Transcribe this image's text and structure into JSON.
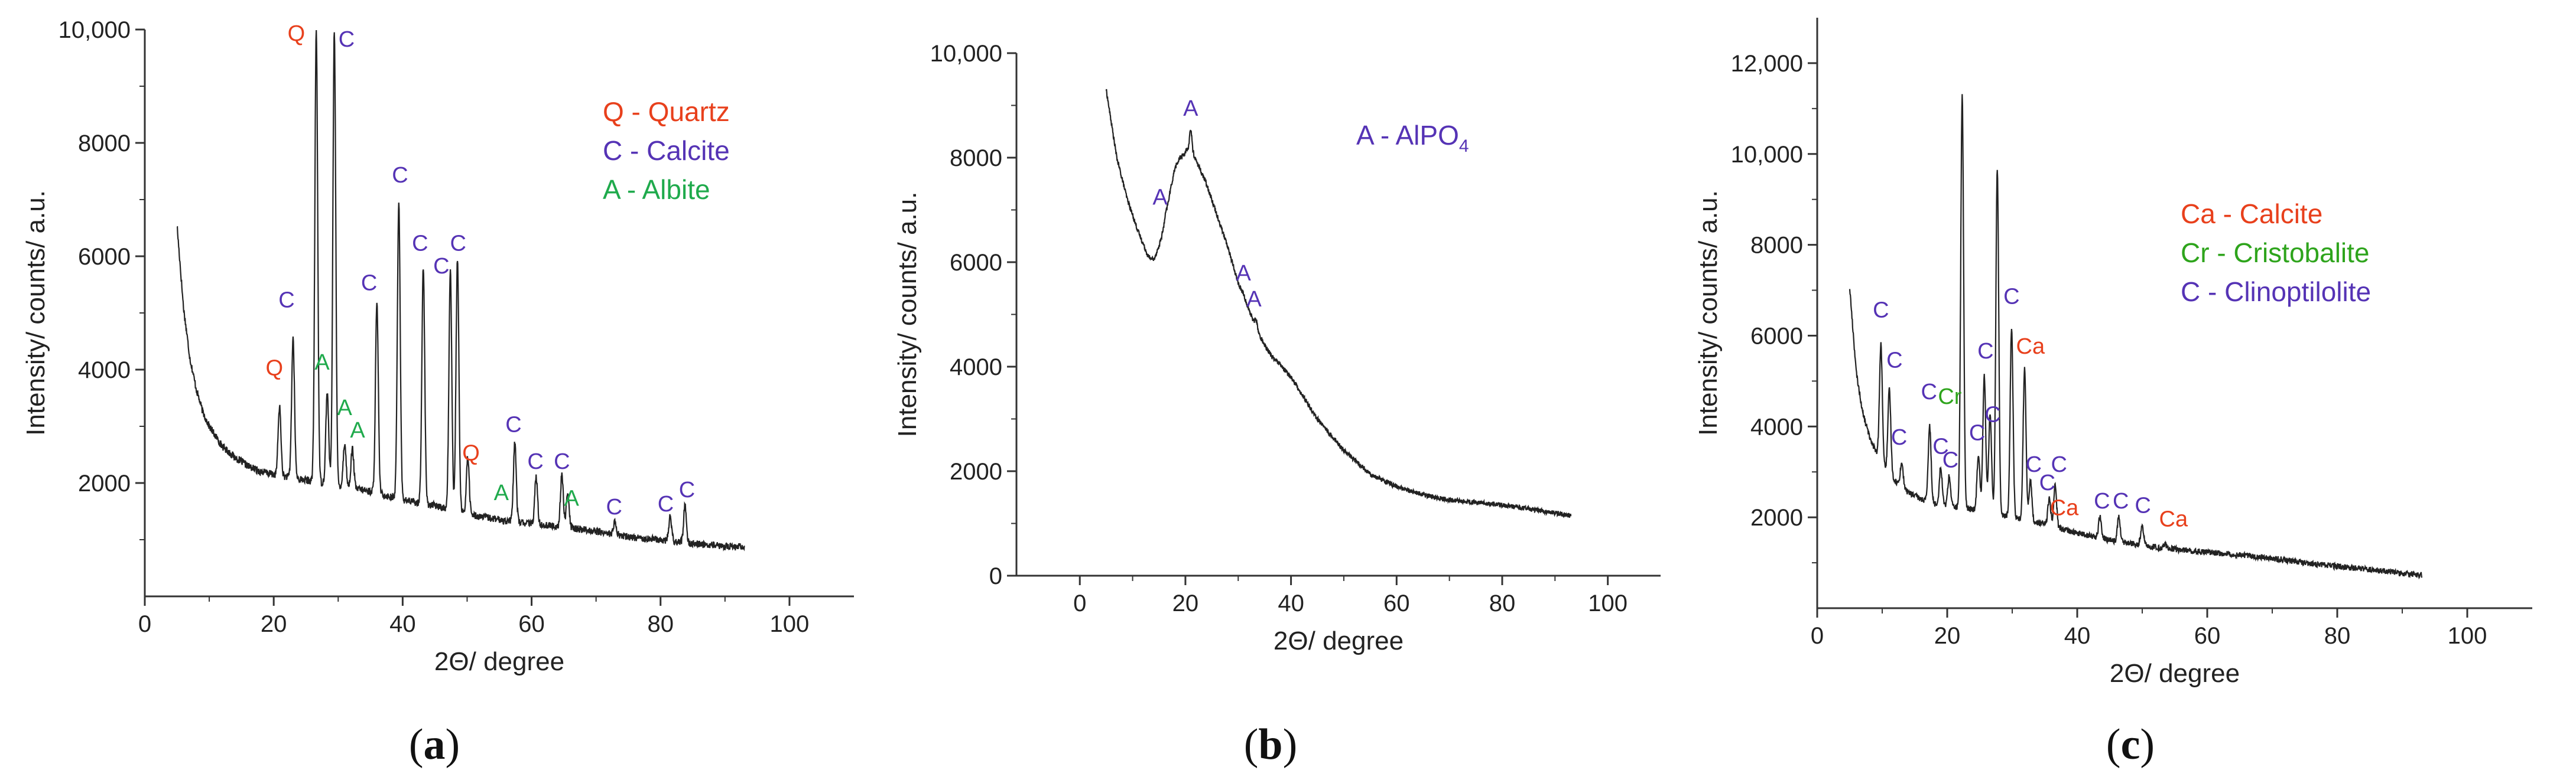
{
  "colors": {
    "quartz": "#e8401c",
    "calcite": "#5533b5",
    "albite": "#1faa4c",
    "cristobalite": "#2ea41c",
    "line": "#222222"
  },
  "chart_data": [
    {
      "type": "line",
      "panel": "a",
      "panel_label": [
        "(",
        "a",
        ")"
      ],
      "xlabel": "2Θ/ degree",
      "ylabel": "Intensity/ counts/ a.u.",
      "xlim": [
        0,
        110
      ],
      "ylim": [
        0,
        10000
      ],
      "xticks": [
        0,
        20,
        40,
        60,
        80,
        100
      ],
      "yticks": [
        2000,
        4000,
        6000,
        8000,
        10000
      ],
      "ytick_labels": [
        "2000",
        "4000",
        "6000",
        "8000",
        "10,000"
      ],
      "background": [
        [
          5,
          6550
        ],
        [
          6,
          5100
        ],
        [
          7,
          4200
        ],
        [
          8,
          3650
        ],
        [
          9,
          3250
        ],
        [
          10,
          3000
        ],
        [
          12,
          2650
        ],
        [
          14,
          2450
        ],
        [
          16,
          2300
        ],
        [
          18,
          2200
        ],
        [
          20,
          2150
        ],
        [
          25,
          2050
        ],
        [
          30,
          1950
        ],
        [
          35,
          1850
        ],
        [
          40,
          1700
        ],
        [
          45,
          1600
        ],
        [
          50,
          1450
        ],
        [
          55,
          1350
        ],
        [
          60,
          1280
        ],
        [
          65,
          1220
        ],
        [
          70,
          1150
        ],
        [
          75,
          1050
        ],
        [
          80,
          1000
        ],
        [
          85,
          930
        ],
        [
          90,
          880
        ],
        [
          93,
          870
        ]
      ],
      "peaks": [
        [
          20.9,
          3350
        ],
        [
          23.0,
          4550
        ],
        [
          26.6,
          10000
        ],
        [
          28.3,
          3600
        ],
        [
          29.4,
          10000
        ],
        [
          31.0,
          2700
        ],
        [
          32.2,
          2600
        ],
        [
          36.0,
          5150
        ],
        [
          39.4,
          6950
        ],
        [
          43.2,
          5800
        ],
        [
          47.4,
          5750
        ],
        [
          48.5,
          5950
        ],
        [
          50.1,
          2450
        ],
        [
          57.4,
          2700
        ],
        [
          60.7,
          2100
        ],
        [
          64.7,
          2150
        ],
        [
          65.6,
          1800
        ],
        [
          72.9,
          1300
        ],
        [
          81.5,
          1400
        ],
        [
          83.8,
          1600
        ]
      ],
      "legend": [
        {
          "text": "Q - Quartz",
          "color_key": "quartz"
        },
        {
          "text": "C - Calcite",
          "color_key": "calcite"
        },
        {
          "text": "A - Albite",
          "color_key": "albite"
        }
      ],
      "annotations": [
        {
          "text": "Q",
          "x": 20.1,
          "y": 3900,
          "color_key": "quartz"
        },
        {
          "text": "C",
          "x": 22.0,
          "y": 5100,
          "color_key": "calcite"
        },
        {
          "text": "Q",
          "x": 23.5,
          "y": 9800,
          "color_key": "quartz"
        },
        {
          "text": "A",
          "x": 27.5,
          "y": 4000,
          "color_key": "albite"
        },
        {
          "text": "C",
          "x": 31.3,
          "y": 9700,
          "color_key": "calcite"
        },
        {
          "text": "A",
          "x": 31.0,
          "y": 3200,
          "color_key": "albite"
        },
        {
          "text": "A",
          "x": 33.0,
          "y": 2800,
          "color_key": "albite"
        },
        {
          "text": "C",
          "x": 34.8,
          "y": 5400,
          "color_key": "calcite"
        },
        {
          "text": "C",
          "x": 39.6,
          "y": 7300,
          "color_key": "calcite"
        },
        {
          "text": "C",
          "x": 42.7,
          "y": 6100,
          "color_key": "calcite"
        },
        {
          "text": "C",
          "x": 46.0,
          "y": 5700,
          "color_key": "calcite"
        },
        {
          "text": "C",
          "x": 48.6,
          "y": 6100,
          "color_key": "calcite"
        },
        {
          "text": "Q",
          "x": 50.6,
          "y": 2400,
          "color_key": "quartz"
        },
        {
          "text": "C",
          "x": 57.2,
          "y": 2900,
          "color_key": "calcite"
        },
        {
          "text": "A",
          "x": 55.3,
          "y": 1700,
          "color_key": "albite"
        },
        {
          "text": "C",
          "x": 60.6,
          "y": 2250,
          "color_key": "calcite"
        },
        {
          "text": "C",
          "x": 64.7,
          "y": 2250,
          "color_key": "calcite"
        },
        {
          "text": "A",
          "x": 66.2,
          "y": 1600,
          "color_key": "albite"
        },
        {
          "text": "C",
          "x": 72.8,
          "y": 1450,
          "color_key": "calcite"
        },
        {
          "text": "C",
          "x": 80.8,
          "y": 1500,
          "color_key": "calcite"
        },
        {
          "text": "C",
          "x": 84.1,
          "y": 1750,
          "color_key": "calcite"
        }
      ]
    },
    {
      "type": "line",
      "panel": "b",
      "panel_label": [
        "(",
        "b",
        ")"
      ],
      "xlabel": "2Θ/ degree",
      "ylabel": "Intensity/ counts/ a.u.",
      "xlim": [
        -12,
        110
      ],
      "ylim": [
        0,
        10000
      ],
      "xticks": [
        0,
        20,
        40,
        60,
        80,
        100
      ],
      "yticks": [
        0,
        2000,
        4000,
        6000,
        8000,
        10000
      ],
      "ytick_labels": [
        "0",
        "2000",
        "4000",
        "6000",
        "8000",
        "10,000"
      ],
      "background": [
        [
          5,
          9300
        ],
        [
          7,
          8000
        ],
        [
          9,
          7200
        ],
        [
          11,
          6600
        ],
        [
          13,
          6100
        ],
        [
          14,
          6050
        ],
        [
          15,
          6300
        ],
        [
          16,
          6700
        ],
        [
          17,
          7300
        ],
        [
          18,
          7800
        ],
        [
          19,
          8000
        ],
        [
          20,
          8100
        ],
        [
          21,
          8200
        ],
        [
          22,
          7950
        ],
        [
          24,
          7500
        ],
        [
          26,
          6900
        ],
        [
          28,
          6300
        ],
        [
          30,
          5600
        ],
        [
          32,
          5100
        ],
        [
          34,
          4600
        ],
        [
          36,
          4250
        ],
        [
          40,
          3800
        ],
        [
          45,
          3000
        ],
        [
          50,
          2400
        ],
        [
          55,
          1950
        ],
        [
          60,
          1700
        ],
        [
          65,
          1550
        ],
        [
          70,
          1450
        ],
        [
          75,
          1400
        ],
        [
          80,
          1350
        ],
        [
          85,
          1280
        ],
        [
          90,
          1200
        ],
        [
          93,
          1150
        ]
      ],
      "peaks": [
        [
          16.2,
          6900
        ],
        [
          21.0,
          8550
        ],
        [
          31.0,
          5400
        ],
        [
          33.4,
          4900
        ]
      ],
      "legend": [
        {
          "text": "A - AlPO",
          "subscript": "4",
          "color_key": "calcite"
        }
      ],
      "annotations": [
        {
          "text": "A",
          "x": 15.2,
          "y": 7100,
          "color_key": "calcite"
        },
        {
          "text": "A",
          "x": 21.0,
          "y": 8800,
          "color_key": "calcite"
        },
        {
          "text": "A",
          "x": 31.0,
          "y": 5650,
          "color_key": "calcite"
        },
        {
          "text": "A",
          "x": 33.0,
          "y": 5150,
          "color_key": "calcite"
        }
      ]
    },
    {
      "type": "line",
      "panel": "c",
      "panel_label": [
        "(",
        "c",
        ")"
      ],
      "xlabel": "2Θ/ degree",
      "ylabel": "Intensity/ counts/ a.u.",
      "xlim": [
        0,
        110
      ],
      "ylim": [
        0,
        13000
      ],
      "xticks": [
        0,
        20,
        40,
        60,
        80,
        100
      ],
      "yticks": [
        2000,
        4000,
        6000,
        8000,
        10000,
        12000
      ],
      "ytick_labels": [
        "2000",
        "4000",
        "6000",
        "8000",
        "10,000",
        "12,000"
      ],
      "background": [
        [
          5,
          7050
        ],
        [
          6,
          5200
        ],
        [
          7,
          4300
        ],
        [
          8,
          3800
        ],
        [
          9,
          3450
        ],
        [
          10,
          3150
        ],
        [
          12,
          2800
        ],
        [
          14,
          2550
        ],
        [
          16,
          2400
        ],
        [
          18,
          2300
        ],
        [
          20,
          2250
        ],
        [
          25,
          2150
        ],
        [
          30,
          2000
        ],
        [
          35,
          1850
        ],
        [
          40,
          1650
        ],
        [
          45,
          1500
        ],
        [
          50,
          1380
        ],
        [
          55,
          1300
        ],
        [
          60,
          1230
        ],
        [
          65,
          1180
        ],
        [
          70,
          1100
        ],
        [
          75,
          1000
        ],
        [
          80,
          920
        ],
        [
          85,
          850
        ],
        [
          90,
          770
        ],
        [
          93,
          730
        ]
      ],
      "peaks": [
        [
          9.8,
          5800
        ],
        [
          11.1,
          4800
        ],
        [
          13.0,
          3200
        ],
        [
          17.3,
          4000
        ],
        [
          19.0,
          3100
        ],
        [
          20.3,
          2900
        ],
        [
          22.3,
          11300
        ],
        [
          24.8,
          3400
        ],
        [
          25.7,
          5100
        ],
        [
          26.6,
          4300
        ],
        [
          27.7,
          9700
        ],
        [
          29.9,
          6200
        ],
        [
          31.9,
          5300
        ],
        [
          32.8,
          2800
        ],
        [
          35.7,
          2400
        ],
        [
          36.6,
          2700
        ],
        [
          43.5,
          2000
        ],
        [
          46.4,
          2000
        ],
        [
          50.0,
          1800
        ],
        [
          53.5,
          1400
        ]
      ],
      "legend": [
        {
          "text": "Ca - Calcite",
          "color_key": "quartz"
        },
        {
          "text": "Cr  - Cristobalite",
          "color_key": "cristobalite"
        },
        {
          "text": "C   - Clinoptilolite",
          "color_key": "calcite"
        }
      ],
      "annotations": [
        {
          "text": "C",
          "x": 9.8,
          "y": 6400,
          "color_key": "calcite"
        },
        {
          "text": "C",
          "x": 11.9,
          "y": 5300,
          "color_key": "calcite"
        },
        {
          "text": "C",
          "x": 12.6,
          "y": 3600,
          "color_key": "calcite"
        },
        {
          "text": "C",
          "x": 17.2,
          "y": 4600,
          "color_key": "calcite"
        },
        {
          "text": "Cr",
          "x": 20.4,
          "y": 4500,
          "color_key": "cristobalite"
        },
        {
          "text": "C",
          "x": 19.0,
          "y": 3400,
          "color_key": "calcite"
        },
        {
          "text": "C",
          "x": 20.5,
          "y": 3100,
          "color_key": "calcite"
        },
        {
          "text": "C",
          "x": 24.6,
          "y": 3700,
          "color_key": "calcite"
        },
        {
          "text": "C",
          "x": 25.9,
          "y": 5500,
          "color_key": "calcite"
        },
        {
          "text": "C",
          "x": 27.0,
          "y": 4100,
          "color_key": "calcite"
        },
        {
          "text": "C",
          "x": 29.9,
          "y": 6700,
          "color_key": "calcite"
        },
        {
          "text": "Ca",
          "x": 32.8,
          "y": 5600,
          "color_key": "quartz"
        },
        {
          "text": "C",
          "x": 33.3,
          "y": 3000,
          "color_key": "calcite"
        },
        {
          "text": "C",
          "x": 35.4,
          "y": 2600,
          "color_key": "calcite"
        },
        {
          "text": "C",
          "x": 37.2,
          "y": 3000,
          "color_key": "calcite"
        },
        {
          "text": "Ca",
          "x": 38.0,
          "y": 2050,
          "color_key": "quartz"
        },
        {
          "text": "C",
          "x": 43.8,
          "y": 2200,
          "color_key": "calcite"
        },
        {
          "text": "C",
          "x": 46.7,
          "y": 2200,
          "color_key": "calcite"
        },
        {
          "text": "C",
          "x": 50.1,
          "y": 2100,
          "color_key": "calcite"
        },
        {
          "text": "Ca",
          "x": 54.8,
          "y": 1800,
          "color_key": "quartz"
        }
      ]
    }
  ]
}
